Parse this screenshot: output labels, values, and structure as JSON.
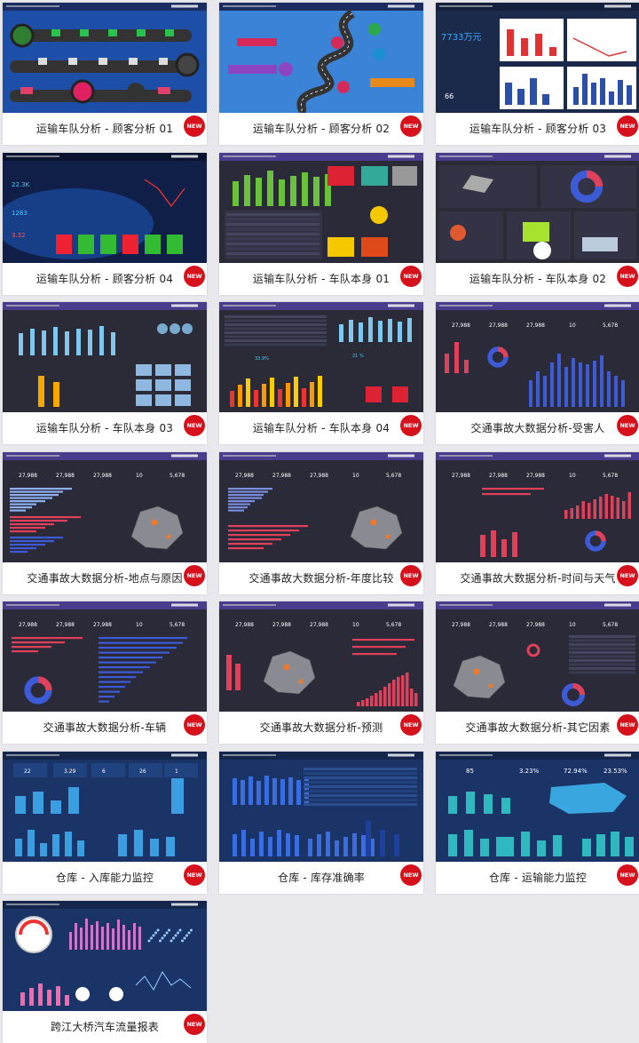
{
  "badge_label": "NEW",
  "cards": [
    {
      "caption": "运输车队分析 - 顾客分析 01",
      "style": "road-blue"
    },
    {
      "caption": "运输车队分析 - 顾客分析 02",
      "style": "road-map"
    },
    {
      "caption": "运输车队分析 - 顾客分析 03",
      "style": "white-panels"
    },
    {
      "caption": "运输车队分析 - 顾客分析 04",
      "style": "tech-blue"
    },
    {
      "caption": "运输车队分析 - 车队本身 01",
      "style": "dark-purple"
    },
    {
      "caption": "运输车队分析 - 车队本身 02",
      "style": "dark-panels"
    },
    {
      "caption": "运输车队分析 - 车队本身 03",
      "style": "dark-icons"
    },
    {
      "caption": "运输车队分析 - 车队本身 04",
      "style": "dark-mixed"
    },
    {
      "caption": "交通事故大数据分析-受害人",
      "style": "accident"
    },
    {
      "caption": "交通事故大数据分析-地点与原因",
      "style": "accident-map"
    },
    {
      "caption": "交通事故大数据分析-年度比较",
      "style": "accident-map2"
    },
    {
      "caption": "交通事故大数据分析-时间与天气",
      "style": "accident-bars"
    },
    {
      "caption": "交通事故大数据分析-车辆",
      "style": "accident-hbar"
    },
    {
      "caption": "交通事故大数据分析-预测",
      "style": "accident-map3"
    },
    {
      "caption": "交通事故大数据分析-其它因素",
      "style": "accident-map4"
    },
    {
      "caption": "仓库 - 入库能力监控",
      "style": "warehouse"
    },
    {
      "caption": "仓库 - 库存准确率",
      "style": "warehouse2"
    },
    {
      "caption": "仓库 - 运输能力监控",
      "style": "warehouse3"
    },
    {
      "caption": "跨江大桥汽车流量报表",
      "style": "bridge"
    }
  ],
  "thumb_text": {
    "kpi_values": [
      "27,988",
      "27,988",
      "27,988",
      "10",
      "5,678"
    ],
    "card3_big": "7733万元",
    "card3_small": "66",
    "card4_a": "22.3K",
    "card4_b": "1283",
    "card4_c": "3.32",
    "wh1_values": [
      "22",
      "3.29",
      "6",
      "26",
      "1"
    ],
    "wh3_values": [
      "85",
      "3.23%",
      "72.94%",
      "23.53%"
    ],
    "card8_a": "33.9%",
    "card8_b": "21 %"
  },
  "colors": {
    "dark_bg": "#2a2a38",
    "purple_bar": "#4a3c8c",
    "navy_bg": "#1b3468",
    "badge_red": "#d6111c"
  }
}
